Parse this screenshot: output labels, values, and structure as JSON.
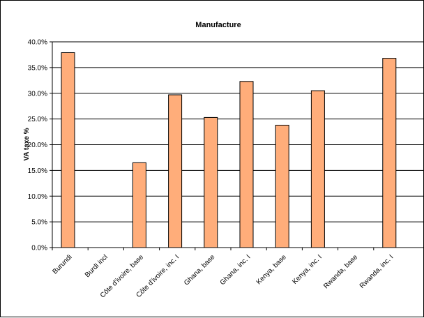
{
  "chart_data": {
    "type": "bar",
    "title": "Manufacture",
    "xlabel": "",
    "ylabel": "VA taxe %",
    "categories": [
      "Burundi",
      "Burdi incl",
      "Côte d'ivoire, base",
      "Côte d'ivoire, inc. I",
      "Ghana, base",
      "Ghana, inc. I",
      "Kenya, base",
      "Kenya, inc. I",
      "Rwanda, base",
      "Rwanda, inc. I"
    ],
    "values": [
      37.9,
      null,
      16.5,
      29.7,
      25.3,
      32.3,
      23.8,
      30.5,
      null,
      36.8
    ],
    "ylim": [
      0,
      40
    ],
    "ytick_labels": [
      "0.0%",
      "5.0%",
      "10.0%",
      "15.0%",
      "20.0%",
      "25.0%",
      "30.0%",
      "35.0%",
      "40.0%"
    ],
    "grid": "horizontal",
    "legend": "none",
    "bar_color": "#FFAD7A",
    "bar_edge": "#000000",
    "grid_color": "#000000"
  }
}
